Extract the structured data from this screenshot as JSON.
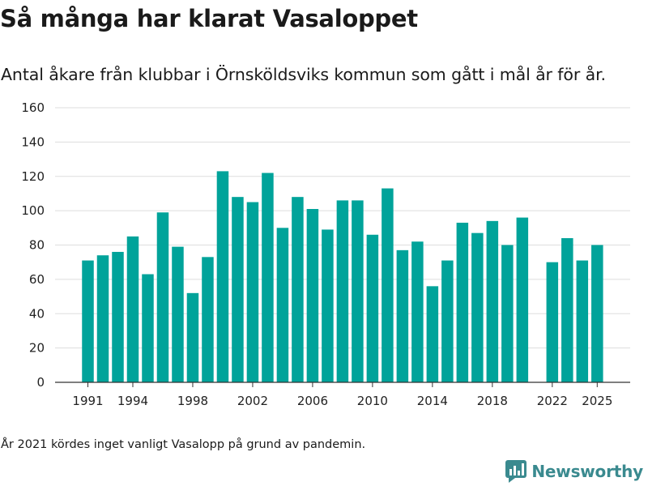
{
  "title": "Så många har klarat Vasaloppet",
  "subtitle": "Antal åkare från klubbar i Örnsköldsviks kommun som gått i mål år för år.",
  "footnote": "År 2021 kördes inget vanligt Vasalopp på grund av pandemin.",
  "brand": {
    "name": "Newsworthy",
    "icon": "newsworthy-logo-icon"
  },
  "colors": {
    "bar": "#00a39a",
    "grid": "#dddddd",
    "axis": "#333333",
    "brand": "#3a8a8f"
  },
  "chart_data": {
    "type": "bar",
    "title": "Så många har klarat Vasaloppet",
    "xlabel": "",
    "ylabel": "",
    "ylim": [
      0,
      160
    ],
    "yticks": [
      0,
      20,
      40,
      60,
      80,
      100,
      120,
      140,
      160
    ],
    "xticks": [
      1991,
      1994,
      1998,
      2002,
      2006,
      2010,
      2014,
      2018,
      2022,
      2025
    ],
    "x": [
      1991,
      1992,
      1993,
      1994,
      1995,
      1996,
      1997,
      1998,
      1999,
      2000,
      2001,
      2002,
      2003,
      2004,
      2005,
      2006,
      2007,
      2008,
      2009,
      2010,
      2011,
      2012,
      2013,
      2014,
      2015,
      2016,
      2017,
      2018,
      2019,
      2020,
      2021,
      2022,
      2023,
      2024,
      2025
    ],
    "values": [
      71,
      74,
      76,
      85,
      63,
      99,
      79,
      52,
      73,
      123,
      108,
      105,
      122,
      90,
      108,
      101,
      89,
      106,
      106,
      86,
      113,
      77,
      82,
      56,
      71,
      93,
      87,
      94,
      80,
      96,
      null,
      70,
      84,
      71,
      80
    ],
    "grid": true
  }
}
